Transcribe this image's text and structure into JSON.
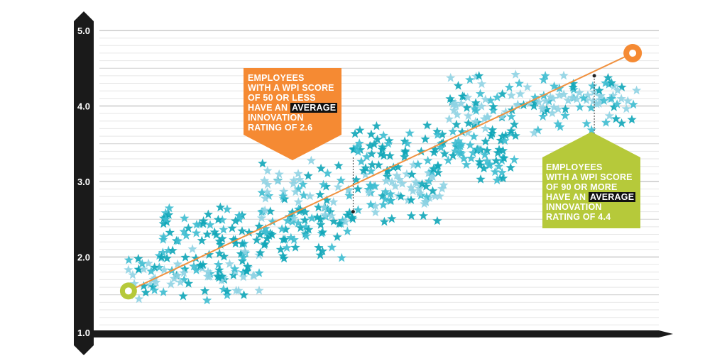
{
  "chart_data": {
    "type": "scatter",
    "title": "",
    "xlabel": "",
    "ylabel": "",
    "ylim": [
      1.0,
      5.0
    ],
    "yticks": [
      "1.0",
      "2.0",
      "3.0",
      "4.0",
      "5.0"
    ],
    "xlim": [
      0,
      100
    ],
    "grid": true,
    "marker": "star",
    "colors": {
      "star_light": "#8fd3e3",
      "star_mid": "#3dbcd0",
      "star_dark": "#0fa6b8",
      "trend_line": "#f0913f",
      "axis": "#1a1a1a",
      "callout_low": "#f58a33",
      "callout_high": "#b6c93a",
      "highlight": "#111111"
    },
    "trend": {
      "start": {
        "x": 4,
        "y": 1.55
      },
      "end": {
        "x": 96,
        "y": 4.7
      }
    },
    "annotations": [
      {
        "id": "low",
        "x": 45,
        "y": 2.6,
        "lines": [
          "EMPLOYEES",
          "WITH A WPI SCORE",
          "OF 50 OR LESS",
          "HAVE AN |AVERAGE",
          "INNOVATION",
          "RATING OF 2.6"
        ],
        "line1": "EMPLOYEES",
        "line2": "WITH A WPI SCORE",
        "line3": "OF 50 OR LESS",
        "line4a": "HAVE AN ",
        "line4b": "AVERAGE",
        "line5": "INNOVATION",
        "line6": "RATING OF 2.6"
      },
      {
        "id": "high",
        "x": 89,
        "y": 4.4,
        "line1": "EMPLOYEES",
        "line2": "WITH A WPI SCORE",
        "line3": "OF 90 OR MORE",
        "line4a": "HAVE AN ",
        "line4b": "AVERAGE",
        "line5": "INNOVATION",
        "line6": "RATING OF 4.4"
      }
    ],
    "point_clouds": [
      {
        "x_min": 4,
        "x_max": 28,
        "y_center": 1.75,
        "y_spread": 0.38,
        "count": 90,
        "shade": "mix"
      },
      {
        "x_min": 10,
        "x_max": 45,
        "y_center": 2.35,
        "y_spread": 0.45,
        "count": 120,
        "shade": "dark"
      },
      {
        "x_min": 28,
        "x_max": 62,
        "y_center": 2.85,
        "y_spread": 0.45,
        "count": 120,
        "shade": "mix"
      },
      {
        "x_min": 45,
        "x_max": 75,
        "y_center": 3.4,
        "y_spread": 0.45,
        "count": 120,
        "shade": "dark"
      },
      {
        "x_min": 62,
        "x_max": 97,
        "y_center": 4.05,
        "y_spread": 0.45,
        "count": 130,
        "shade": "mix"
      }
    ]
  }
}
